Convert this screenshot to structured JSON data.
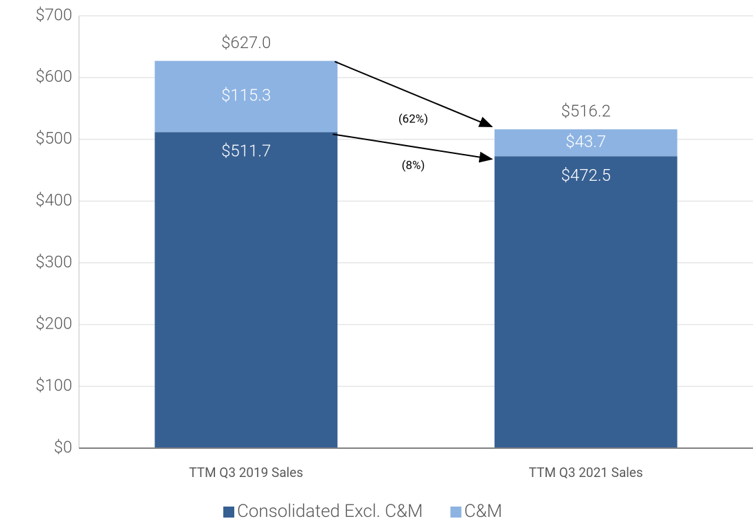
{
  "chart_data": {
    "type": "stacked_bar",
    "categories": [
      "TTM Q3 2019 Sales",
      "TTM Q3 2021 Sales"
    ],
    "series": [
      {
        "name": "Consolidated Excl. C&M",
        "color": "#376092",
        "values": [
          511.7,
          472.5
        ],
        "value_labels": [
          "$511.7",
          "$472.5"
        ]
      },
      {
        "name": "C&M",
        "color": "#8db3e2",
        "values": [
          115.3,
          43.7
        ],
        "value_labels": [
          "$115.3",
          "$43.7"
        ]
      }
    ],
    "totals": {
      "values": [
        627.0,
        516.2
      ],
      "value_labels": [
        "$627.0",
        "$516.2"
      ]
    },
    "annotations": [
      "(62%)",
      "(8%)"
    ],
    "ylim": [
      0,
      700
    ],
    "yticks": [
      {
        "value": 0,
        "label": "$0"
      },
      {
        "value": 100,
        "label": "$100"
      },
      {
        "value": 200,
        "label": "$200"
      },
      {
        "value": 300,
        "label": "$300"
      },
      {
        "value": 400,
        "label": "$400"
      },
      {
        "value": 500,
        "label": "$500"
      },
      {
        "value": 600,
        "label": "$600"
      },
      {
        "value": 700,
        "label": "$700"
      }
    ],
    "grid": true,
    "legend": "bottom"
  }
}
